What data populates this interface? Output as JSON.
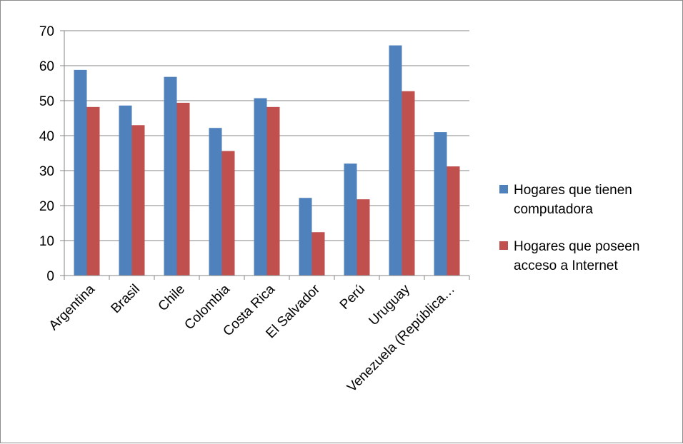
{
  "chart_data": {
    "type": "bar",
    "title": "",
    "xlabel": "",
    "ylabel": "",
    "ylim": [
      0,
      70
    ],
    "yticks": [
      0,
      10,
      20,
      30,
      40,
      50,
      60,
      70
    ],
    "grid": true,
    "legend_position": "right",
    "categories": [
      "Argentina",
      "Brasil",
      "Chile",
      "Colombia",
      "Costa Rica",
      "El Salvador",
      "Perú",
      "Uruguay",
      "Venezuela (República…"
    ],
    "series": [
      {
        "name_lines": [
          "Hogares que tienen",
          "computadora"
        ],
        "color": "#4f81bd",
        "values": [
          58.8,
          48.6,
          56.8,
          42.2,
          50.7,
          22.2,
          32.0,
          65.8,
          41.0
        ]
      },
      {
        "name_lines": [
          "Hogares que poseen",
          "acceso a Internet"
        ],
        "color": "#c0504d",
        "values": [
          48.2,
          43.0,
          49.4,
          35.6,
          48.2,
          12.4,
          21.8,
          52.7,
          31.2
        ]
      }
    ]
  }
}
